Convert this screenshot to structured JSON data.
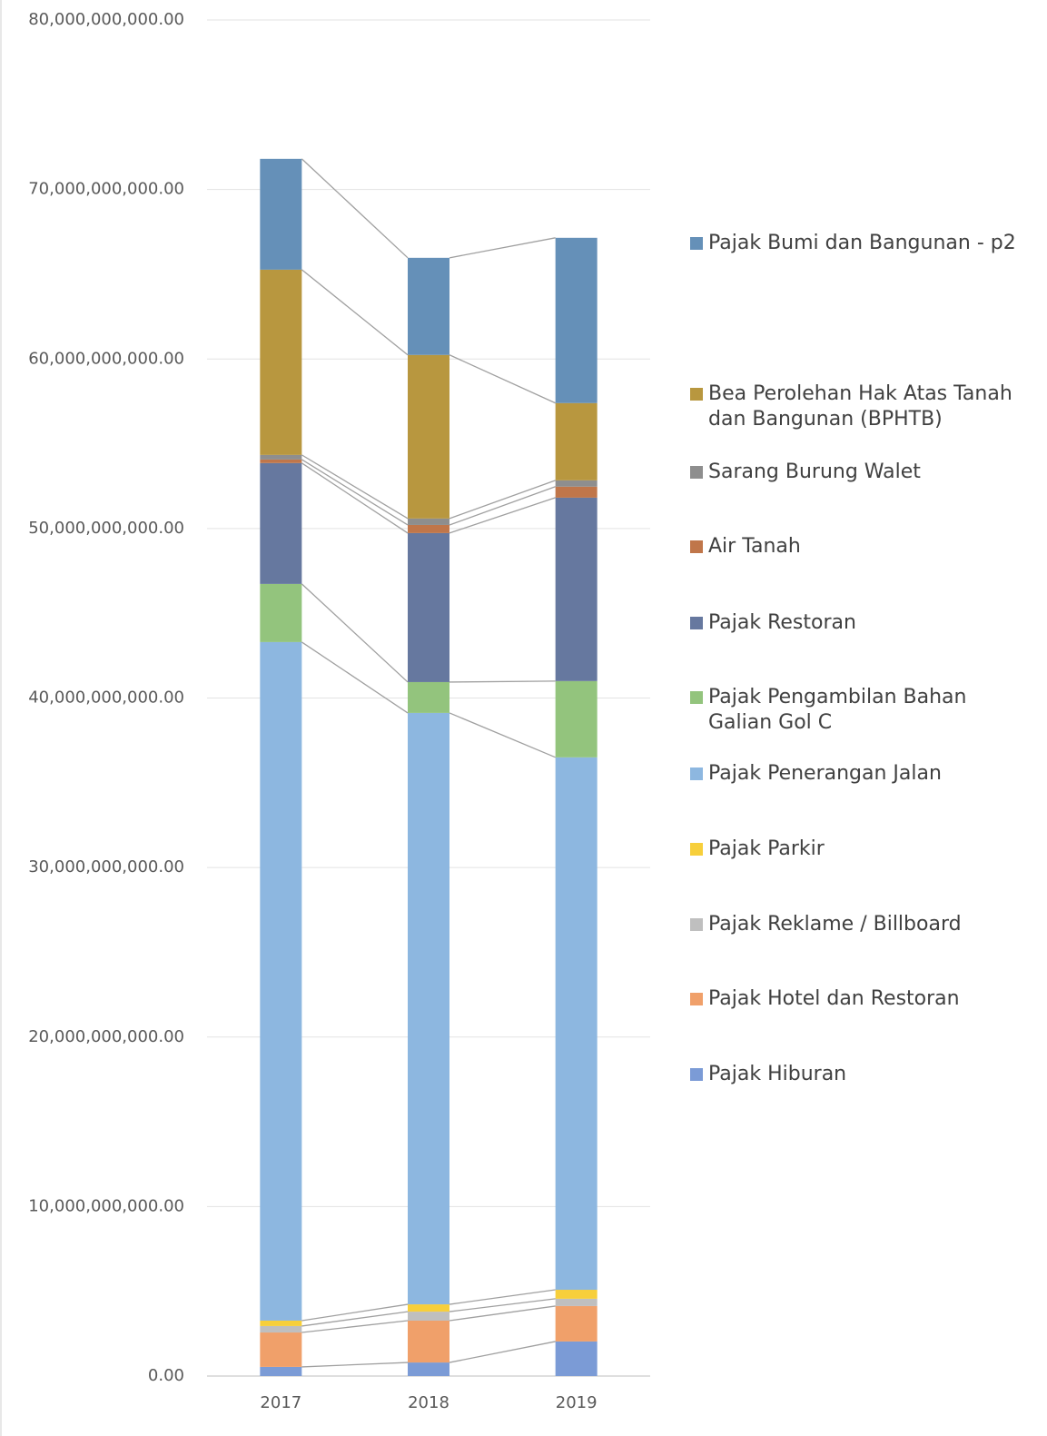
{
  "chart_data": {
    "type": "stacked_bar",
    "categories": [
      "2017",
      "2018",
      "2019"
    ],
    "series": [
      {
        "name": "Pajak Hiburan",
        "color": "#7b9bd6",
        "values": [
          540000000,
          800000000,
          2040000000
        ]
      },
      {
        "name": "Pajak Hotel dan Restoran",
        "color": "#f0a06a",
        "values": [
          2030000000,
          2470000000,
          2090000000
        ]
      },
      {
        "name": "Pajak Reklame / Billboard",
        "color": "#bfbfbf",
        "values": [
          380000000,
          530000000,
          430000000
        ]
      },
      {
        "name": "Pajak Parkir",
        "color": "#f7cf3b",
        "values": [
          320000000,
          430000000,
          530000000
        ]
      },
      {
        "name": "Pajak Penerangan Jalan",
        "color": "#8db7e0",
        "values": [
          40030000000,
          34890000000,
          31410000000
        ]
      },
      {
        "name": "Pajak Pengambilan Bahan Galian Gol C",
        "color": "#93c47d",
        "values": [
          3430000000,
          1820000000,
          4500000000
        ]
      },
      {
        "name": "Pajak Restoran",
        "color": "#66789f",
        "values": [
          7130000000,
          8790000000,
          10820000000
        ]
      },
      {
        "name": "Air Tanah",
        "color": "#c0764a",
        "values": [
          210000000,
          480000000,
          650000000
        ]
      },
      {
        "name": "Sarang Burung Walet",
        "color": "#8e8e8e",
        "values": [
          270000000,
          380000000,
          370000000
        ]
      },
      {
        "name": "Bea Perolehan Hak Atas Tanah dan Bangunan (BPHTB)",
        "color": "#b8973f",
        "values": [
          10930000000,
          9650000000,
          4560000000
        ]
      },
      {
        "name": "Pajak Bumi dan Bangunan - p2",
        "color": "#6590b8",
        "values": [
          6540000000,
          5730000000,
          9750000000
        ]
      }
    ],
    "ylim": [
      0,
      80000000000
    ],
    "yticks": [
      {
        "value": 0,
        "label": "0.00"
      },
      {
        "value": 10000000000,
        "label": "10,000,000,000.00"
      },
      {
        "value": 20000000000,
        "label": "20,000,000,000.00"
      },
      {
        "value": 30000000000,
        "label": "30,000,000,000.00"
      },
      {
        "value": 40000000000,
        "label": "40,000,000,000.00"
      },
      {
        "value": 50000000000,
        "label": "50,000,000,000.00"
      },
      {
        "value": 60000000000,
        "label": "60,000,000,000.00"
      },
      {
        "value": 70000000000,
        "label": "70,000,000,000.00"
      },
      {
        "value": 80000000000,
        "label": "80,000,000,000.00"
      }
    ],
    "grid": true,
    "legend": "right"
  }
}
